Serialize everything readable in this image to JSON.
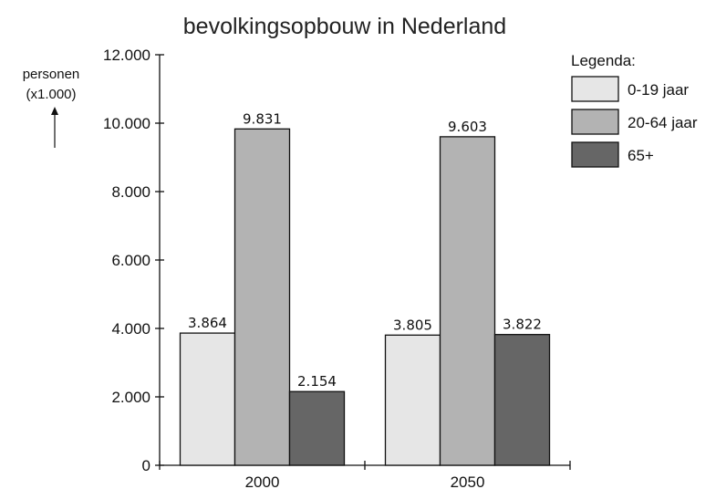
{
  "chart_data": {
    "type": "bar",
    "title": "bevolkingsopbouw in Nederland",
    "ylabel": "personen\n(x1.000)",
    "ylabel_lines": [
      "personen",
      "(x1.000)"
    ],
    "categories": [
      "2000",
      "2050"
    ],
    "ylim": [
      0,
      12000
    ],
    "yticks": [
      0,
      2000,
      4000,
      6000,
      8000,
      10000,
      12000
    ],
    "ytick_labels": [
      "0",
      "2.000",
      "4.000",
      "6.000",
      "8.000",
      "10.000",
      "12.000"
    ],
    "grid": false,
    "legend": {
      "title": "Legenda:",
      "position": "top-right"
    },
    "series": [
      {
        "name": "0-19 jaar",
        "values": [
          3864,
          3805
        ],
        "labels": [
          "3.864",
          "3.805"
        ],
        "color": "#e6e6e6"
      },
      {
        "name": "20-64 jaar",
        "values": [
          9831,
          9603
        ],
        "labels": [
          "9.831",
          "9.603"
        ],
        "color": "#b3b3b3"
      },
      {
        "name": "65+",
        "values": [
          2154,
          3822
        ],
        "labels": [
          "2.154",
          "3.822"
        ],
        "color": "#666666"
      }
    ]
  }
}
